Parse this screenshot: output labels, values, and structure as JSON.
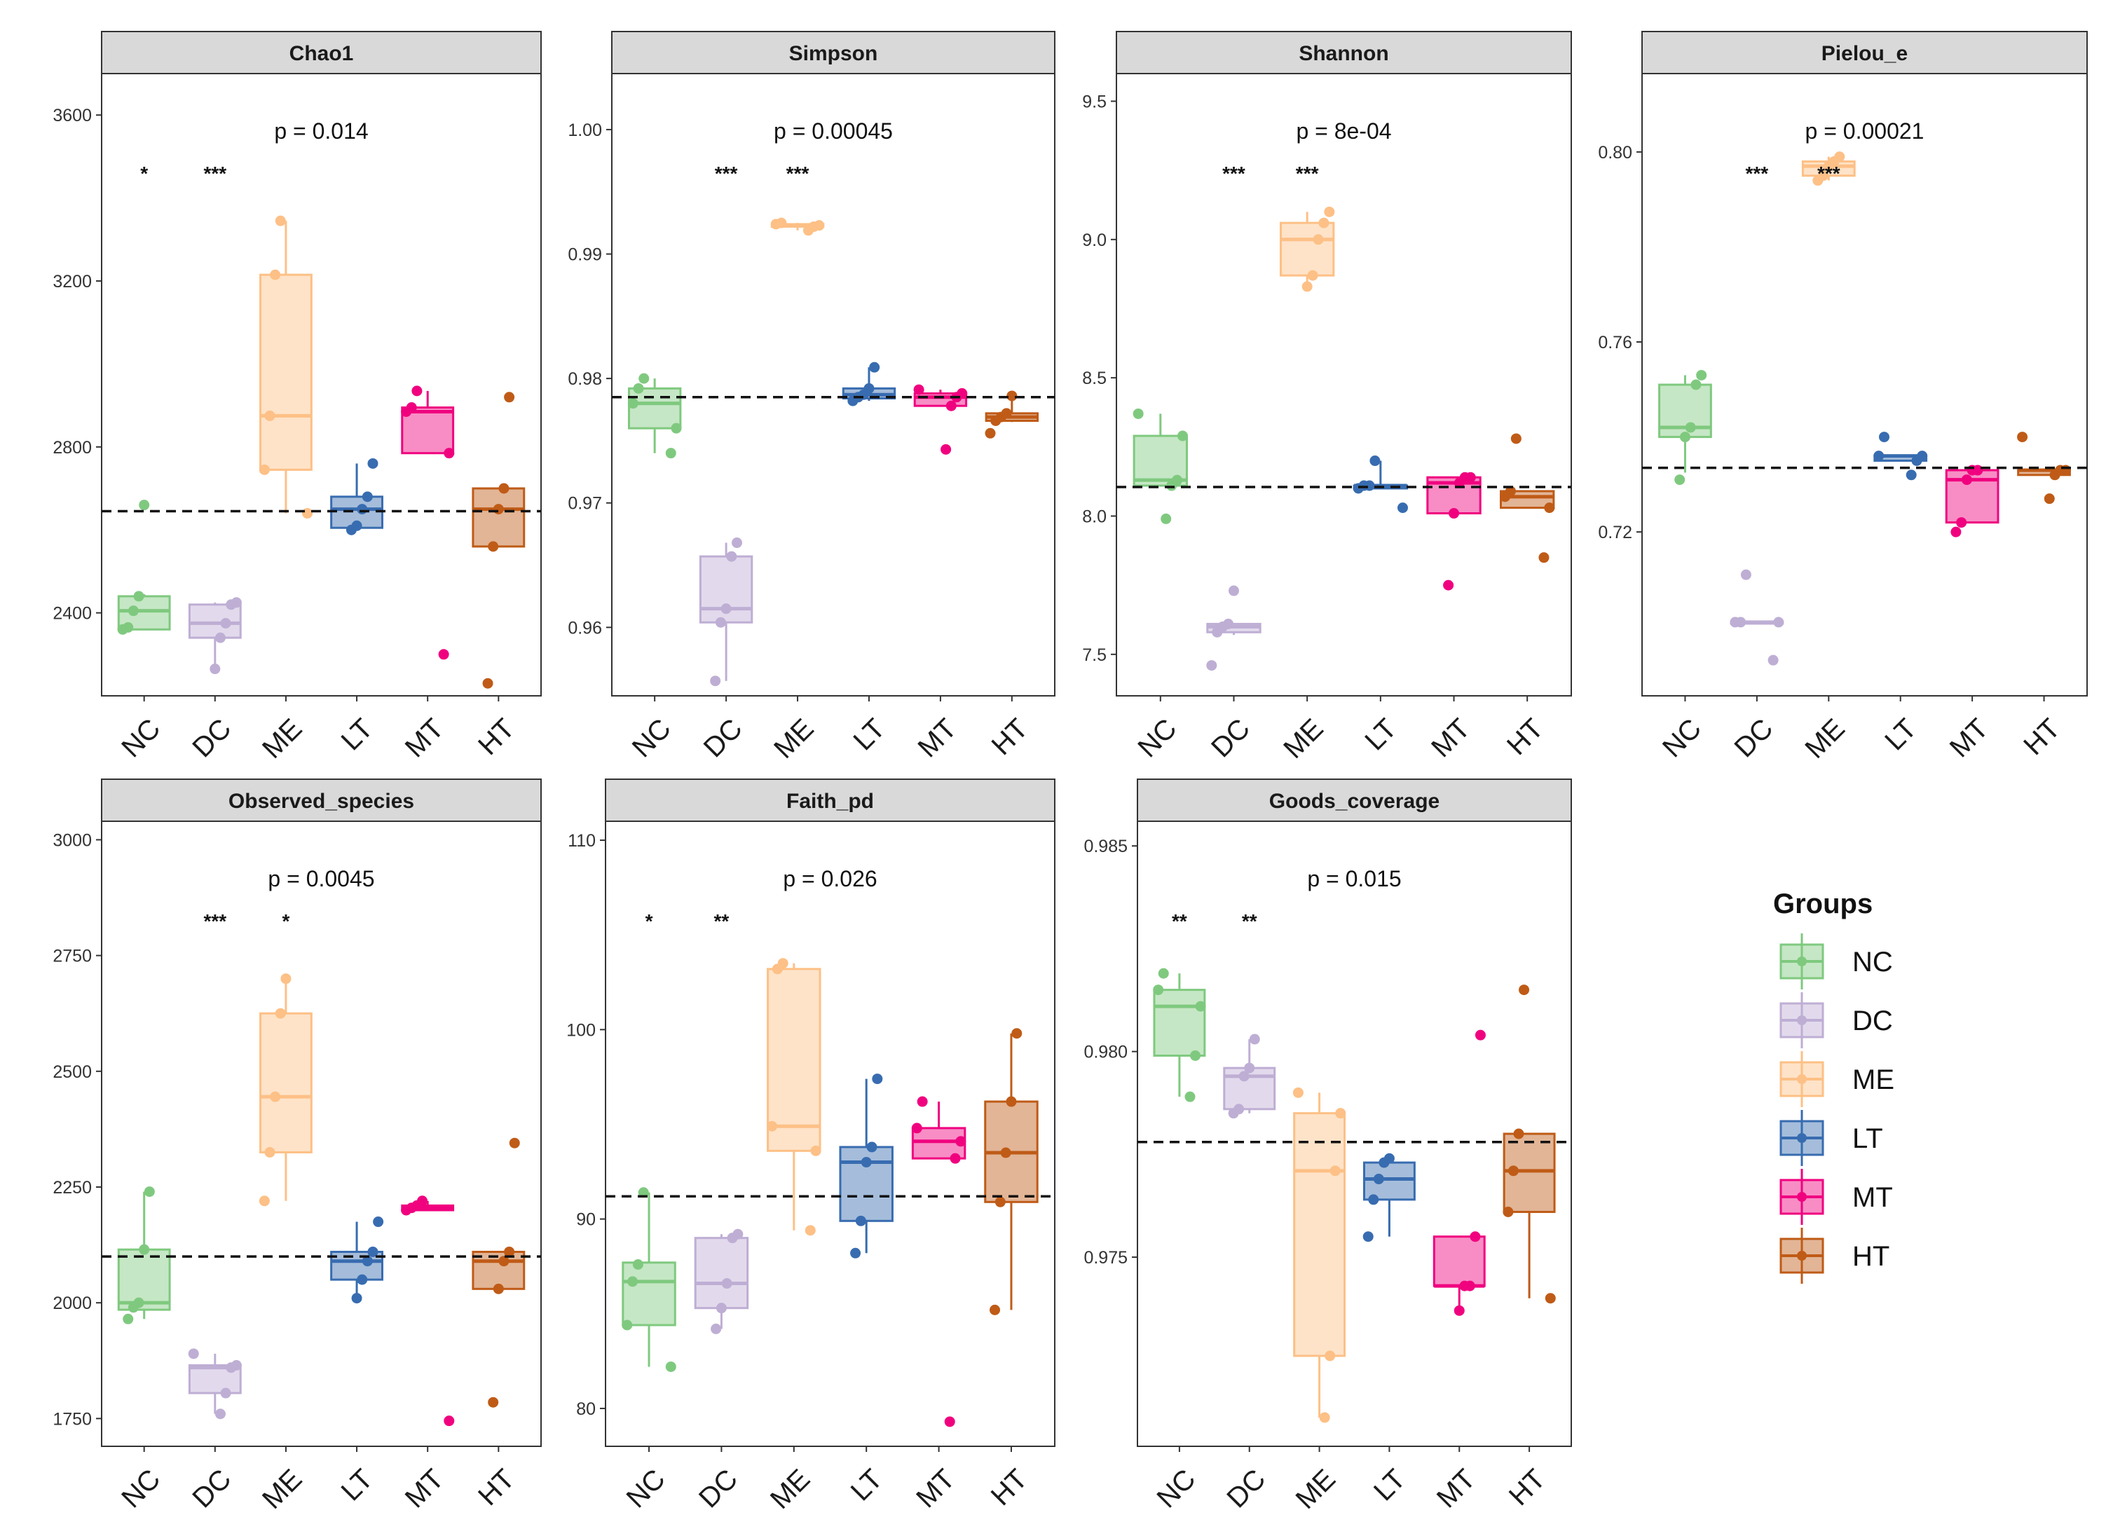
{
  "legend": {
    "title": "Groups",
    "groups": [
      "NC",
      "DC",
      "ME",
      "LT",
      "MT",
      "HT"
    ],
    "colors": [
      "#7fc97f",
      "#beaed4",
      "#fdc086",
      "#386cb0",
      "#f0027f",
      "#bf5b17"
    ]
  },
  "chart_data": [
    {
      "type": "box",
      "title": "Chao1",
      "categories": [
        "NC",
        "DC",
        "ME",
        "LT",
        "MT",
        "HT"
      ],
      "ylim": [
        2200,
        3700
      ],
      "yticks": [
        2400,
        2800,
        3200,
        3600
      ],
      "p_value": "p = 0.014",
      "reference_line": 2645,
      "significance": [
        "*",
        "***",
        "",
        "",
        "",
        ""
      ],
      "boxes": [
        {
          "group": "NC",
          "whisker_low": 2360,
          "q1": 2360,
          "median": 2405,
          "q3": 2440,
          "whisker_high": 2445,
          "points": [
            2360,
            2365,
            2405,
            2440,
            2660
          ]
        },
        {
          "group": "DC",
          "whisker_low": 2270,
          "q1": 2340,
          "median": 2375,
          "q3": 2420,
          "whisker_high": 2425,
          "points": [
            2265,
            2340,
            2375,
            2420,
            2425
          ]
        },
        {
          "group": "ME",
          "whisker_low": 2640,
          "q1": 2745,
          "median": 2875,
          "q3": 3215,
          "whisker_high": 3345,
          "points": [
            2640,
            2745,
            2875,
            3215,
            3345
          ]
        },
        {
          "group": "LT",
          "whisker_low": 2600,
          "q1": 2605,
          "median": 2650,
          "q3": 2680,
          "whisker_high": 2760,
          "points": [
            2600,
            2610,
            2650,
            2680,
            2760
          ]
        },
        {
          "group": "MT",
          "whisker_low": 2785,
          "q1": 2785,
          "median": 2885,
          "q3": 2895,
          "whisker_high": 2935,
          "points": [
            2300,
            2785,
            2885,
            2895,
            2935
          ]
        },
        {
          "group": "HT",
          "whisker_low": 2560,
          "q1": 2560,
          "median": 2650,
          "q3": 2700,
          "whisker_high": 2700,
          "points": [
            2230,
            2560,
            2650,
            2700,
            2920
          ]
        }
      ]
    },
    {
      "type": "box",
      "title": "Simpson",
      "categories": [
        "NC",
        "DC",
        "ME",
        "LT",
        "MT",
        "HT"
      ],
      "ylim": [
        0.9545,
        1.0045
      ],
      "yticks": [
        0.96,
        0.97,
        0.98,
        0.99,
        1.0
      ],
      "ytick_labels": [
        "0.96",
        "0.97",
        "0.98",
        "0.99",
        "1.00"
      ],
      "p_value": "p = 0.00045",
      "reference_line": 0.9785,
      "significance": [
        "",
        "***",
        "***",
        "",
        "",
        ""
      ],
      "boxes": [
        {
          "group": "NC",
          "whisker_low": 0.974,
          "q1": 0.976,
          "median": 0.978,
          "q3": 0.9792,
          "whisker_high": 0.98,
          "points": [
            0.974,
            0.976,
            0.978,
            0.9792,
            0.98
          ]
        },
        {
          "group": "DC",
          "whisker_low": 0.9557,
          "q1": 0.9604,
          "median": 0.9615,
          "q3": 0.9657,
          "whisker_high": 0.9668,
          "points": [
            0.9557,
            0.9604,
            0.9615,
            0.9657,
            0.9668
          ]
        },
        {
          "group": "ME",
          "whisker_low": 0.9919,
          "q1": 0.9922,
          "median": 0.9923,
          "q3": 0.9924,
          "whisker_high": 0.9925,
          "points": [
            0.9919,
            0.9922,
            0.9923,
            0.9924,
            0.9925
          ]
        },
        {
          "group": "LT",
          "whisker_low": 0.9782,
          "q1": 0.9784,
          "median": 0.9787,
          "q3": 0.9792,
          "whisker_high": 0.9809,
          "points": [
            0.9782,
            0.9785,
            0.9787,
            0.9792,
            0.9809
          ]
        },
        {
          "group": "MT",
          "whisker_low": 0.9778,
          "q1": 0.9778,
          "median": 0.9785,
          "q3": 0.9788,
          "whisker_high": 0.9791,
          "points": [
            0.9743,
            0.9778,
            0.9785,
            0.9788,
            0.9791
          ]
        },
        {
          "group": "HT",
          "whisker_low": 0.9765,
          "q1": 0.9766,
          "median": 0.9769,
          "q3": 0.9772,
          "whisker_high": 0.9786,
          "points": [
            0.9756,
            0.9766,
            0.9769,
            0.9772,
            0.9786
          ]
        }
      ]
    },
    {
      "type": "box",
      "title": "Shannon",
      "categories": [
        "NC",
        "DC",
        "ME",
        "LT",
        "MT",
        "HT"
      ],
      "ylim": [
        7.35,
        9.6
      ],
      "yticks": [
        7.5,
        8.0,
        8.5,
        9.0,
        9.5
      ],
      "ytick_labels": [
        "7.5",
        "8.0",
        "8.5",
        "9.0",
        "9.5"
      ],
      "p_value": "p = 8e-04",
      "reference_line": 8.105,
      "significance": [
        "",
        "***",
        "***",
        "",
        "",
        ""
      ],
      "boxes": [
        {
          "group": "NC",
          "whisker_low": 8.11,
          "q1": 8.11,
          "median": 8.13,
          "q3": 8.29,
          "whisker_high": 8.37,
          "points": [
            7.99,
            8.11,
            8.13,
            8.29,
            8.37
          ]
        },
        {
          "group": "DC",
          "whisker_low": 7.57,
          "q1": 7.58,
          "median": 7.6,
          "q3": 7.61,
          "whisker_high": 7.61,
          "points": [
            7.46,
            7.58,
            7.6,
            7.61,
            7.73
          ]
        },
        {
          "group": "ME",
          "whisker_low": 8.83,
          "q1": 8.87,
          "median": 9.0,
          "q3": 9.06,
          "whisker_high": 9.1,
          "points": [
            8.83,
            8.87,
            9.0,
            9.06,
            9.1
          ]
        },
        {
          "group": "LT",
          "whisker_low": 8.1,
          "q1": 8.1,
          "median": 8.11,
          "q3": 8.11,
          "whisker_high": 8.2,
          "points": [
            8.03,
            8.1,
            8.11,
            8.11,
            8.2
          ]
        },
        {
          "group": "MT",
          "whisker_low": 8.01,
          "q1": 8.01,
          "median": 8.12,
          "q3": 8.14,
          "whisker_high": 8.14,
          "points": [
            7.75,
            8.01,
            8.12,
            8.14,
            8.14
          ]
        },
        {
          "group": "HT",
          "whisker_low": 8.03,
          "q1": 8.03,
          "median": 8.07,
          "q3": 8.09,
          "whisker_high": 8.09,
          "points": [
            7.85,
            8.03,
            8.07,
            8.09,
            8.28
          ]
        }
      ]
    },
    {
      "type": "box",
      "title": "Pielou_e",
      "categories": [
        "NC",
        "DC",
        "ME",
        "LT",
        "MT",
        "HT"
      ],
      "ylim": [
        0.6855,
        0.8165
      ],
      "yticks": [
        0.72,
        0.76,
        0.8
      ],
      "ytick_labels": [
        "0.72",
        "0.76",
        "0.80"
      ],
      "p_value": "p = 0.00021",
      "reference_line": 0.7335,
      "significance": [
        "",
        "***",
        "***",
        "",
        "",
        ""
      ],
      "boxes": [
        {
          "group": "NC",
          "whisker_low": 0.7325,
          "q1": 0.74,
          "median": 0.742,
          "q3": 0.751,
          "whisker_high": 0.753,
          "points": [
            0.731,
            0.74,
            0.742,
            0.751,
            0.753
          ]
        },
        {
          "group": "DC",
          "whisker_low": 0.701,
          "q1": 0.701,
          "median": 0.701,
          "q3": 0.701,
          "whisker_high": 0.701,
          "points": [
            0.693,
            0.701,
            0.701,
            0.701,
            0.711
          ]
        },
        {
          "group": "ME",
          "whisker_low": 0.794,
          "q1": 0.795,
          "median": 0.797,
          "q3": 0.798,
          "whisker_high": 0.799,
          "points": [
            0.794,
            0.795,
            0.797,
            0.798,
            0.799
          ]
        },
        {
          "group": "LT",
          "whisker_low": 0.735,
          "q1": 0.735,
          "median": 0.736,
          "q3": 0.736,
          "whisker_high": 0.736,
          "points": [
            0.732,
            0.735,
            0.736,
            0.736,
            0.74
          ]
        },
        {
          "group": "MT",
          "whisker_low": 0.722,
          "q1": 0.722,
          "median": 0.731,
          "q3": 0.733,
          "whisker_high": 0.733,
          "points": [
            0.72,
            0.722,
            0.731,
            0.733,
            0.733
          ]
        },
        {
          "group": "HT",
          "whisker_low": 0.732,
          "q1": 0.732,
          "median": 0.733,
          "q3": 0.733,
          "whisker_high": 0.733,
          "points": [
            0.727,
            0.732,
            0.733,
            0.733,
            0.74
          ]
        }
      ]
    },
    {
      "type": "box",
      "title": "Observed_species",
      "categories": [
        "NC",
        "DC",
        "ME",
        "LT",
        "MT",
        "HT"
      ],
      "ylim": [
        1690,
        3040
      ],
      "yticks": [
        1750,
        2000,
        2250,
        2500,
        2750,
        3000
      ],
      "p_value": "p = 0.0045",
      "reference_line": 2100,
      "significance": [
        "",
        "***",
        "*",
        "",
        "",
        ""
      ],
      "boxes": [
        {
          "group": "NC",
          "whisker_low": 1965,
          "q1": 1985,
          "median": 2000,
          "q3": 2115,
          "whisker_high": 2240,
          "points": [
            1965,
            1990,
            2000,
            2115,
            2240
          ]
        },
        {
          "group": "DC",
          "whisker_low": 1760,
          "q1": 1805,
          "median": 1860,
          "q3": 1865,
          "whisker_high": 1890,
          "points": [
            1760,
            1805,
            1860,
            1865,
            1890
          ]
        },
        {
          "group": "ME",
          "whisker_low": 2220,
          "q1": 2325,
          "median": 2445,
          "q3": 2625,
          "whisker_high": 2700,
          "points": [
            2220,
            2325,
            2445,
            2625,
            2700
          ]
        },
        {
          "group": "LT",
          "whisker_low": 2010,
          "q1": 2050,
          "median": 2090,
          "q3": 2110,
          "whisker_high": 2175,
          "points": [
            2010,
            2050,
            2090,
            2110,
            2175
          ]
        },
        {
          "group": "MT",
          "whisker_low": 2200,
          "q1": 2200,
          "median": 2205,
          "q3": 2210,
          "whisker_high": 2220,
          "points": [
            1745,
            2200,
            2205,
            2210,
            2220
          ]
        },
        {
          "group": "HT",
          "whisker_low": 2030,
          "q1": 2030,
          "median": 2090,
          "q3": 2110,
          "whisker_high": 2110,
          "points": [
            1785,
            2030,
            2090,
            2110,
            2345
          ]
        }
      ]
    },
    {
      "type": "box",
      "title": "Faith_pd",
      "categories": [
        "NC",
        "DC",
        "ME",
        "LT",
        "MT",
        "HT"
      ],
      "ylim": [
        78,
        111
      ],
      "yticks": [
        80,
        90,
        100,
        110
      ],
      "p_value": "p = 0.026",
      "reference_line": 91.2,
      "significance": [
        "*",
        "**",
        "",
        "",
        "",
        ""
      ],
      "boxes": [
        {
          "group": "NC",
          "whisker_low": 82.2,
          "q1": 84.4,
          "median": 86.7,
          "q3": 87.7,
          "whisker_high": 91.4,
          "points": [
            82.2,
            84.4,
            86.7,
            87.6,
            91.4
          ]
        },
        {
          "group": "DC",
          "whisker_low": 84.2,
          "q1": 85.3,
          "median": 86.6,
          "q3": 89.0,
          "whisker_high": 89.2,
          "points": [
            84.2,
            85.3,
            86.6,
            89.0,
            89.2
          ]
        },
        {
          "group": "ME",
          "whisker_low": 89.4,
          "q1": 93.6,
          "median": 94.9,
          "q3": 103.2,
          "whisker_high": 103.5,
          "points": [
            89.4,
            93.6,
            94.9,
            103.2,
            103.5
          ]
        },
        {
          "group": "LT",
          "whisker_low": 88.2,
          "q1": 89.9,
          "median": 93.0,
          "q3": 93.8,
          "whisker_high": 97.4,
          "points": [
            88.2,
            89.9,
            93.0,
            93.8,
            97.4
          ]
        },
        {
          "group": "MT",
          "whisker_low": 93.2,
          "q1": 93.2,
          "median": 94.1,
          "q3": 94.8,
          "whisker_high": 96.2,
          "points": [
            79.3,
            93.2,
            94.1,
            94.8,
            96.2
          ]
        },
        {
          "group": "HT",
          "whisker_low": 85.2,
          "q1": 90.9,
          "median": 93.5,
          "q3": 96.2,
          "whisker_high": 99.8,
          "points": [
            85.2,
            90.9,
            93.5,
            96.2,
            99.8
          ]
        }
      ]
    },
    {
      "type": "box",
      "title": "Goods_coverage",
      "categories": [
        "NC",
        "DC",
        "ME",
        "LT",
        "MT",
        "HT"
      ],
      "ylim": [
        0.9704,
        0.9856
      ],
      "yticks": [
        0.975,
        0.98,
        0.985
      ],
      "ytick_labels": [
        "0.975",
        "0.980",
        "0.985"
      ],
      "p_value": "p = 0.015",
      "reference_line": 0.9778,
      "significance": [
        "**",
        "**",
        "",
        "",
        "",
        ""
      ],
      "boxes": [
        {
          "group": "NC",
          "whisker_low": 0.9789,
          "q1": 0.9799,
          "median": 0.9811,
          "q3": 0.9815,
          "whisker_high": 0.9819,
          "points": [
            0.9789,
            0.9799,
            0.9811,
            0.9815,
            0.9819
          ]
        },
        {
          "group": "DC",
          "whisker_low": 0.9785,
          "q1": 0.9786,
          "median": 0.9794,
          "q3": 0.9796,
          "whisker_high": 0.9803,
          "points": [
            0.9785,
            0.9786,
            0.9794,
            0.9796,
            0.9803
          ]
        },
        {
          "group": "ME",
          "whisker_low": 0.9711,
          "q1": 0.9726,
          "median": 0.9771,
          "q3": 0.9785,
          "whisker_high": 0.979,
          "points": [
            0.9711,
            0.9726,
            0.9771,
            0.9785,
            0.979
          ]
        },
        {
          "group": "LT",
          "whisker_low": 0.9755,
          "q1": 0.9764,
          "median": 0.9769,
          "q3": 0.9773,
          "whisker_high": 0.9774,
          "points": [
            0.9755,
            0.9764,
            0.9769,
            0.9773,
            0.9774
          ]
        },
        {
          "group": "MT",
          "whisker_low": 0.9737,
          "q1": 0.9743,
          "median": 0.9743,
          "q3": 0.9755,
          "whisker_high": 0.9755,
          "points": [
            0.9737,
            0.9743,
            0.9743,
            0.9755,
            0.9804
          ]
        },
        {
          "group": "HT",
          "whisker_low": 0.974,
          "q1": 0.9761,
          "median": 0.9771,
          "q3": 0.978,
          "whisker_high": 0.978,
          "points": [
            0.974,
            0.9761,
            0.9771,
            0.978,
            0.9815
          ]
        }
      ]
    }
  ]
}
